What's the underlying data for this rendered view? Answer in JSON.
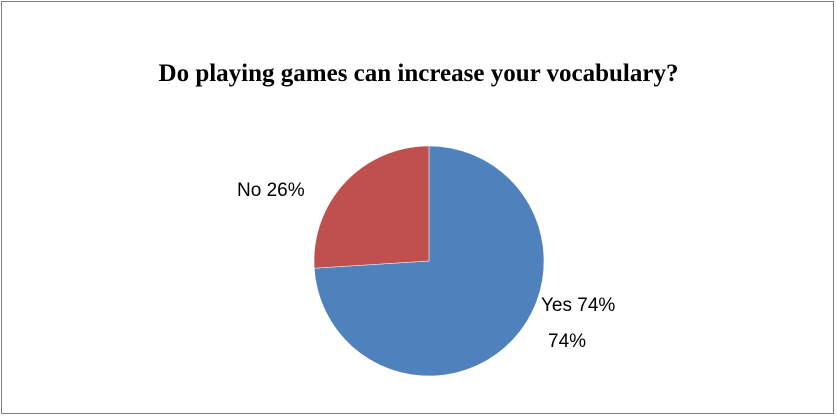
{
  "chart_data": {
    "type": "pie",
    "title": "Do playing games can increase your vocabulary?",
    "slices": [
      {
        "label": "Yes",
        "value": 74,
        "label_text": "Yes 74%",
        "extra_label": "74%",
        "color": "#4F81BD"
      },
      {
        "label": "No",
        "value": 26,
        "label_text": "No 26%",
        "color": "#C0504D"
      }
    ],
    "legend": "none"
  }
}
